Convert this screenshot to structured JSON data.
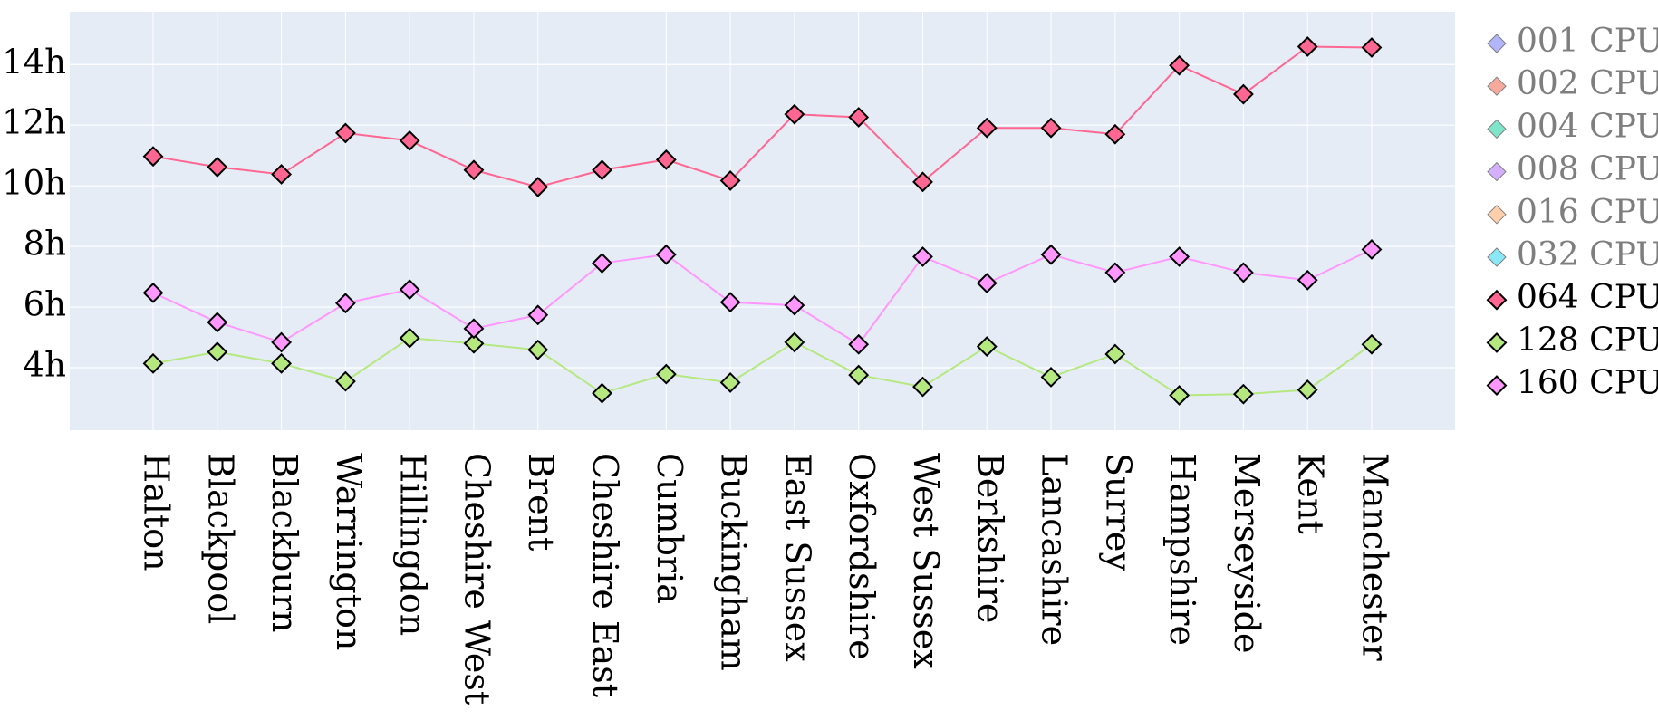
{
  "chart_data": {
    "type": "line",
    "categories": [
      "Halton",
      "Blackpool",
      "Blackburn",
      "Warrington",
      "Hillingdon",
      "Cheshire West",
      "Brent",
      "Cheshire East",
      "Cumbria",
      "Buckingham",
      "East Sussex",
      "Oxfordshire",
      "West Sussex",
      "Berkshire",
      "Lancashire",
      "Surrey",
      "Hampshire",
      "Merseyside",
      "Kent",
      "Manchester"
    ],
    "series": [
      {
        "name": "001 CPU",
        "color": "#636efa",
        "visible": "legendonly",
        "values": [
          null,
          null,
          null,
          null,
          null,
          null,
          null,
          null,
          null,
          null,
          null,
          null,
          null,
          null,
          null,
          null,
          null,
          null,
          null,
          null
        ]
      },
      {
        "name": "002 CPU",
        "color": "#EF553B",
        "visible": "legendonly",
        "values": [
          null,
          null,
          null,
          null,
          null,
          null,
          null,
          null,
          null,
          null,
          null,
          null,
          null,
          null,
          null,
          null,
          null,
          null,
          null,
          null
        ]
      },
      {
        "name": "004 CPU",
        "color": "#00cc96",
        "visible": "legendonly",
        "values": [
          null,
          null,
          null,
          null,
          null,
          null,
          null,
          null,
          null,
          null,
          null,
          null,
          null,
          null,
          null,
          null,
          null,
          null,
          null,
          null
        ]
      },
      {
        "name": "008 CPU",
        "color": "#ab63fa",
        "visible": "legendonly",
        "values": [
          null,
          null,
          null,
          null,
          null,
          null,
          null,
          null,
          null,
          null,
          null,
          null,
          null,
          null,
          null,
          null,
          null,
          null,
          null,
          null
        ]
      },
      {
        "name": "016 CPU",
        "color": "#FFA15A",
        "visible": "legendonly",
        "values": [
          null,
          null,
          null,
          null,
          null,
          null,
          null,
          null,
          null,
          null,
          null,
          null,
          null,
          null,
          null,
          null,
          null,
          null,
          null,
          null
        ]
      },
      {
        "name": "032 CPU",
        "color": "#19d3f3",
        "visible": "legendonly",
        "values": [
          null,
          null,
          null,
          null,
          null,
          null,
          null,
          null,
          null,
          null,
          null,
          null,
          null,
          null,
          null,
          null,
          null,
          null,
          null,
          null
        ]
      },
      {
        "name": "064 CPU",
        "color": "#FF6692",
        "visible": true,
        "values": [
          10.97,
          10.62,
          10.38,
          11.74,
          11.49,
          10.52,
          9.96,
          10.52,
          10.86,
          10.17,
          12.36,
          12.26,
          10.13,
          11.91,
          11.91,
          11.7,
          13.97,
          13.02,
          14.59,
          14.56
        ]
      },
      {
        "name": "128 CPU",
        "color": "#B6E880",
        "visible": true,
        "values": [
          4.14,
          4.52,
          4.14,
          3.55,
          4.98,
          4.8,
          4.59,
          3.16,
          3.79,
          3.51,
          4.84,
          3.76,
          3.37,
          4.7,
          3.69,
          4.45,
          3.09,
          3.13,
          3.27,
          4.77
        ]
      },
      {
        "name": "160 CPU",
        "color": "#FF97FF",
        "visible": true,
        "values": [
          6.47,
          5.5,
          4.84,
          6.13,
          6.58,
          5.29,
          5.74,
          7.45,
          7.73,
          6.16,
          6.06,
          4.77,
          7.66,
          6.79,
          7.73,
          7.14,
          7.66,
          7.14,
          6.89,
          7.9
        ]
      }
    ],
    "ylim": [
      1.94,
      15.74
    ],
    "yticks": [
      {
        "value": 4,
        "label": "4h"
      },
      {
        "value": 6,
        "label": "6h"
      },
      {
        "value": 8,
        "label": "8h"
      },
      {
        "value": 10,
        "label": "10h"
      },
      {
        "value": 12,
        "label": "12h"
      },
      {
        "value": 14,
        "label": "14h"
      }
    ],
    "grid": true,
    "legend": "right"
  }
}
